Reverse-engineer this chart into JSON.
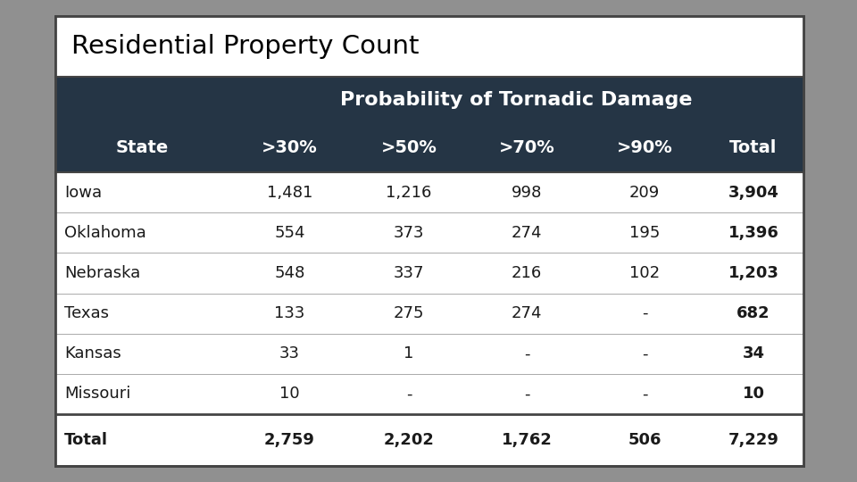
{
  "title": "Residential Property Count",
  "header_row1": "Probability of Tornadic Damage",
  "col_headers": [
    "State",
    ">30%",
    ">50%",
    ">70%",
    ">90%",
    "Total"
  ],
  "rows": [
    [
      "Iowa",
      "1,481",
      "1,216",
      "998",
      "209",
      "3,904"
    ],
    [
      "Oklahoma",
      "554",
      "373",
      "274",
      "195",
      "1,396"
    ],
    [
      "Nebraska",
      "548",
      "337",
      "216",
      "102",
      "1,203"
    ],
    [
      "Texas",
      "133",
      "275",
      "274",
      "-",
      "682"
    ],
    [
      "Kansas",
      "33",
      "1",
      "-",
      "-",
      "34"
    ],
    [
      "Missouri",
      "10",
      "-",
      "-",
      "-",
      "10"
    ]
  ],
  "total_row": [
    "Total",
    "2,759",
    "2,202",
    "1,762",
    "506",
    "7,229"
  ],
  "header_bg": "#253545",
  "header_text": "#ffffff",
  "title_bg": "#ffffff",
  "title_text": "#000000",
  "row_bg": "#ffffff",
  "row_text": "#1a1a1a",
  "outer_bg": "#909090",
  "border_color": "#444444",
  "divider_color": "#aaaaaa",
  "figsize": [
    9.6,
    5.4
  ],
  "dpi": 100
}
